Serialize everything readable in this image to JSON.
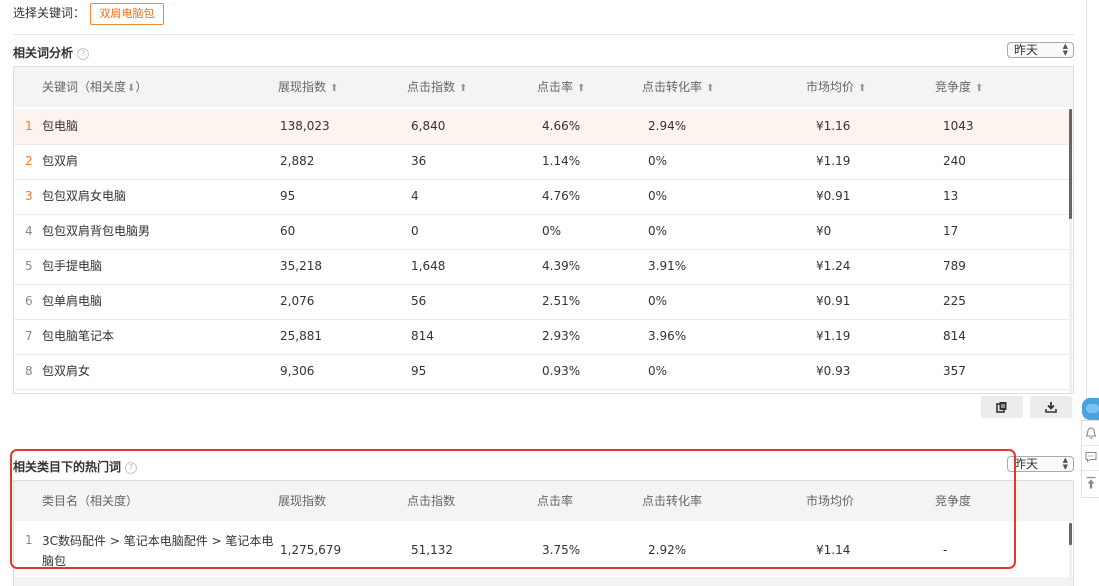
{
  "keyword_selector": {
    "label": "选择关键词：",
    "selected": "双肩电脑包"
  },
  "related_words": {
    "title": "相关词分析",
    "period": "昨天",
    "columns": [
      {
        "label": "关键词（相关度",
        "sort_icon": "arrow-down"
      },
      {
        "label": "展现指数",
        "sort_icon": "arrow-up"
      },
      {
        "label": "点击指数",
        "sort_icon": "arrow-up"
      },
      {
        "label": "点击率",
        "sort_icon": "arrow-up"
      },
      {
        "label": "点击转化率",
        "sort_icon": "arrow-up"
      },
      {
        "label": "市场均价",
        "sort_icon": "arrow-up"
      },
      {
        "label": "竞争度",
        "sort_icon": "arrow-up"
      }
    ],
    "first_column_suffix": "）",
    "rows": [
      {
        "rank": "1",
        "keyword": "包电脑",
        "impressions": "138,023",
        "clicks": "6,840",
        "ctr": "4.66%",
        "cvr": "2.94%",
        "price": "¥1.16",
        "competition": "1043"
      },
      {
        "rank": "2",
        "keyword": "包双肩",
        "impressions": "2,882",
        "clicks": "36",
        "ctr": "1.14%",
        "cvr": "0%",
        "price": "¥1.19",
        "competition": "240"
      },
      {
        "rank": "3",
        "keyword": "包包双肩女电脑",
        "impressions": "95",
        "clicks": "4",
        "ctr": "4.76%",
        "cvr": "0%",
        "price": "¥0.91",
        "competition": "13"
      },
      {
        "rank": "4",
        "keyword": "包包双肩背包电脑男",
        "impressions": "60",
        "clicks": "0",
        "ctr": "0%",
        "cvr": "0%",
        "price": "¥0",
        "competition": "17"
      },
      {
        "rank": "5",
        "keyword": "包手提电脑",
        "impressions": "35,218",
        "clicks": "1,648",
        "ctr": "4.39%",
        "cvr": "3.91%",
        "price": "¥1.24",
        "competition": "789"
      },
      {
        "rank": "6",
        "keyword": "包单肩电脑",
        "impressions": "2,076",
        "clicks": "56",
        "ctr": "2.51%",
        "cvr": "0%",
        "price": "¥0.91",
        "competition": "225"
      },
      {
        "rank": "7",
        "keyword": "包电脑笔记本",
        "impressions": "25,881",
        "clicks": "814",
        "ctr": "2.93%",
        "cvr": "3.96%",
        "price": "¥1.19",
        "competition": "814"
      },
      {
        "rank": "8",
        "keyword": "包双肩女",
        "impressions": "9,306",
        "clicks": "95",
        "ctr": "0.93%",
        "cvr": "0%",
        "price": "¥0.93",
        "competition": "357"
      }
    ]
  },
  "hot_words": {
    "title": "相关类目下的热门词",
    "period": "昨天",
    "columns": [
      "类目名（相关度）",
      "展现指数",
      "点击指数",
      "点击率",
      "点击转化率",
      "市场均价",
      "竞争度"
    ],
    "rows": [
      {
        "rank": "1",
        "category_line1": "3C数码配件 > 笔记本电脑配件 > 笔记本电",
        "category_line2": "脑包",
        "impressions": "1,275,679",
        "clicks": "51,132",
        "ctr": "3.75%",
        "cvr": "2.92%",
        "price": "¥1.14",
        "competition": "-"
      }
    ]
  },
  "toolbar": {
    "copy_icon": "copy-icon",
    "download_icon": "download-icon"
  },
  "side_icons": [
    "chat-bubble-icon",
    "bell-icon",
    "message-icon",
    "back-to-top-icon"
  ],
  "colors": {
    "accent": "#f0701c",
    "highlight_row": "#fdf4ee",
    "red_box": "#e5372b",
    "header_bg": "#f4f4f4"
  }
}
